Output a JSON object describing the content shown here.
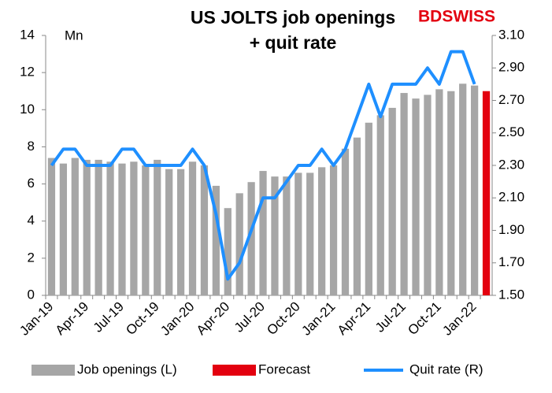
{
  "chart_data": {
    "type": "bar_line",
    "title": [
      "US JOLTS job openings",
      "+ quit rate"
    ],
    "logo": "BDSWISS",
    "y_label": "Mn",
    "categories": [
      "Jan-19",
      null,
      null,
      "Apr-19",
      null,
      null,
      "Jul-19",
      null,
      null,
      "Oct-19",
      null,
      null,
      "Jan-20",
      null,
      null,
      "Apr-20",
      null,
      null,
      "Jul-20",
      null,
      null,
      "Oct-20",
      null,
      null,
      "Jan-21",
      null,
      null,
      "Apr-21",
      null,
      null,
      "Jul-21",
      null,
      null,
      "Oct-21",
      null,
      null,
      "Jan-22",
      null
    ],
    "series": [
      {
        "name": "Job openings (L)",
        "kind": "bar",
        "color": "#a6a6a6",
        "values": [
          7.4,
          7.1,
          7.4,
          7.3,
          7.3,
          7.2,
          7.1,
          7.2,
          7.0,
          7.3,
          6.8,
          6.8,
          7.2,
          7.0,
          5.9,
          4.7,
          5.5,
          6.1,
          6.7,
          6.4,
          6.4,
          6.6,
          6.6,
          6.9,
          7.0,
          7.9,
          8.5,
          9.3,
          9.7,
          10.1,
          10.9,
          10.6,
          10.8,
          11.1,
          11.0,
          11.4,
          11.3,
          null
        ]
      },
      {
        "name": "Forecast",
        "kind": "bar",
        "color": "#e3000f",
        "values": [
          null,
          null,
          null,
          null,
          null,
          null,
          null,
          null,
          null,
          null,
          null,
          null,
          null,
          null,
          null,
          null,
          null,
          null,
          null,
          null,
          null,
          null,
          null,
          null,
          null,
          null,
          null,
          null,
          null,
          null,
          null,
          null,
          null,
          null,
          null,
          null,
          null,
          11.0
        ]
      },
      {
        "name": "Quit rate (R)",
        "kind": "line",
        "axis": "y2",
        "color": "#1e8fff",
        "values": [
          2.3,
          2.4,
          2.4,
          2.3,
          2.3,
          2.3,
          2.4,
          2.4,
          2.3,
          2.3,
          2.3,
          2.3,
          2.4,
          2.3,
          2.0,
          1.6,
          1.7,
          1.9,
          2.1,
          2.1,
          2.2,
          2.3,
          2.3,
          2.4,
          2.3,
          2.4,
          2.6,
          2.8,
          2.6,
          2.8,
          2.8,
          2.8,
          2.9,
          2.8,
          3.0,
          3.0,
          2.8,
          null
        ]
      }
    ],
    "ylim": [
      0,
      14
    ],
    "yticks": [
      0,
      2,
      4,
      6,
      8,
      10,
      12,
      14
    ],
    "y2lim": [
      1.5,
      3.1
    ],
    "y2ticks": [
      {
        "value": 1.5,
        "label": "1.50"
      },
      {
        "value": 1.7,
        "label": "1.70"
      },
      {
        "value": 1.9,
        "label": "1.90"
      },
      {
        "value": 2.1,
        "label": "2.10"
      },
      {
        "value": 2.3,
        "label": "2.30"
      },
      {
        "value": 2.5,
        "label": "2.50"
      },
      {
        "value": 2.7,
        "label": "2.70"
      },
      {
        "value": 2.9,
        "label": "2.90"
      },
      {
        "value": 3.1,
        "label": "3.10"
      }
    ],
    "legend": "bottom",
    "grid": false
  }
}
